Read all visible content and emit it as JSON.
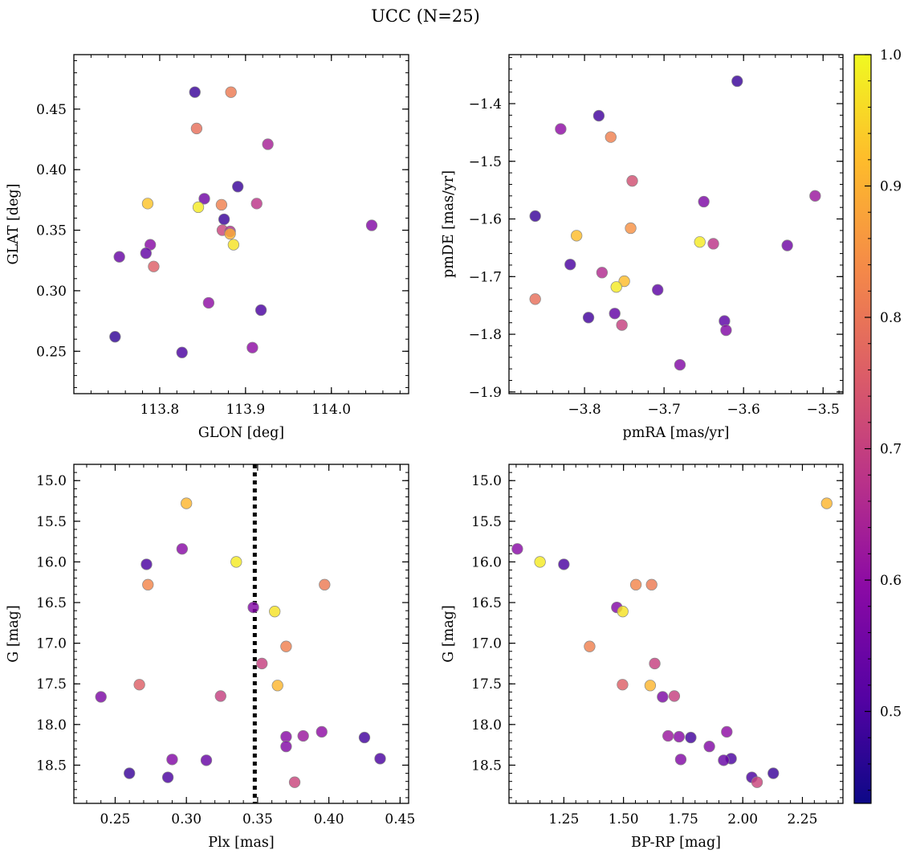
{
  "chart_data": {
    "suptitle": "UCC (N=25)",
    "type": "scatter",
    "colormap": "plasma",
    "marker_edge_color": "#888888",
    "colorbar": {
      "label": "",
      "range": [
        0.43,
        1.0
      ],
      "ticks": [
        0.5,
        0.6,
        0.7,
        0.8,
        0.9,
        1.0
      ],
      "tick_labels": [
        "0.5",
        "0.6",
        "0.7",
        "0.8",
        "0.9",
        "1.0"
      ]
    },
    "panels": [
      {
        "name": "glon-glat",
        "xlabel": "GLON [deg]",
        "ylabel": "GLAT [deg]",
        "xlim": [
          113.7,
          114.09
        ],
        "ylim": [
          0.215,
          0.495
        ],
        "xticks": [
          113.8,
          113.9,
          114.0
        ],
        "xtick_labels": [
          "113.8",
          "113.9",
          "114.0"
        ],
        "yticks": [
          0.25,
          0.3,
          0.35,
          0.4,
          0.45
        ],
        "ytick_labels": [
          "0.25",
          "0.30",
          "0.35",
          "0.40",
          "0.45"
        ],
        "x_minor": 0.02,
        "y_minor": 0.01,
        "invert_y": false,
        "points": [
          {
            "x": 113.841,
            "y": 0.464,
            "p": 0.48
          },
          {
            "x": 113.883,
            "y": 0.464,
            "p": 0.81
          },
          {
            "x": 113.843,
            "y": 0.434,
            "p": 0.79
          },
          {
            "x": 113.926,
            "y": 0.421,
            "p": 0.64
          },
          {
            "x": 113.891,
            "y": 0.386,
            "p": 0.48
          },
          {
            "x": 113.852,
            "y": 0.376,
            "p": 0.55
          },
          {
            "x": 113.786,
            "y": 0.372,
            "p": 0.93
          },
          {
            "x": 113.872,
            "y": 0.371,
            "p": 0.82
          },
          {
            "x": 113.913,
            "y": 0.372,
            "p": 0.68
          },
          {
            "x": 113.845,
            "y": 0.369,
            "p": 0.98
          },
          {
            "x": 113.875,
            "y": 0.359,
            "p": 0.48
          },
          {
            "x": 114.047,
            "y": 0.354,
            "p": 0.58
          },
          {
            "x": 113.873,
            "y": 0.35,
            "p": 0.71
          },
          {
            "x": 113.882,
            "y": 0.349,
            "p": 0.66
          },
          {
            "x": 113.882,
            "y": 0.347,
            "p": 0.9
          },
          {
            "x": 113.789,
            "y": 0.338,
            "p": 0.59
          },
          {
            "x": 113.886,
            "y": 0.338,
            "p": 0.97
          },
          {
            "x": 113.784,
            "y": 0.331,
            "p": 0.53
          },
          {
            "x": 113.753,
            "y": 0.328,
            "p": 0.54
          },
          {
            "x": 113.793,
            "y": 0.32,
            "p": 0.76
          },
          {
            "x": 113.857,
            "y": 0.29,
            "p": 0.6
          },
          {
            "x": 113.918,
            "y": 0.284,
            "p": 0.5
          },
          {
            "x": 113.748,
            "y": 0.262,
            "p": 0.47
          },
          {
            "x": 113.908,
            "y": 0.253,
            "p": 0.6
          },
          {
            "x": 113.826,
            "y": 0.249,
            "p": 0.5
          }
        ]
      },
      {
        "name": "pmra-pmde",
        "xlabel": "pmRA [mas/yr]",
        "ylabel": "pmDE [mas/yr]",
        "xlim": [
          -3.895,
          -3.475
        ],
        "ylim": [
          -1.903,
          -1.315
        ],
        "xticks": [
          -3.8,
          -3.7,
          -3.6,
          -3.5
        ],
        "xtick_labels": [
          "−3.8",
          "−3.7",
          "−3.6",
          "−3.5"
        ],
        "yticks": [
          -1.9,
          -1.8,
          -1.7,
          -1.6,
          -1.5,
          -1.4
        ],
        "ytick_labels": [
          "−1.9",
          "−1.8",
          "−1.7",
          "−1.6",
          "−1.5",
          "−1.4"
        ],
        "x_minor": 0.02,
        "y_minor": 0.02,
        "invert_y": false,
        "points": [
          {
            "x": -3.608,
            "y": -1.361,
            "p": 0.48
          },
          {
            "x": -3.782,
            "y": -1.421,
            "p": 0.49
          },
          {
            "x": -3.83,
            "y": -1.444,
            "p": 0.6
          },
          {
            "x": -3.767,
            "y": -1.458,
            "p": 0.82
          },
          {
            "x": -3.74,
            "y": -1.534,
            "p": 0.73
          },
          {
            "x": -3.51,
            "y": -1.56,
            "p": 0.62
          },
          {
            "x": -3.65,
            "y": -1.57,
            "p": 0.57
          },
          {
            "x": -3.862,
            "y": -1.595,
            "p": 0.48
          },
          {
            "x": -3.742,
            "y": -1.616,
            "p": 0.85
          },
          {
            "x": -3.81,
            "y": -1.629,
            "p": 0.92
          },
          {
            "x": -3.655,
            "y": -1.64,
            "p": 0.98
          },
          {
            "x": -3.638,
            "y": -1.643,
            "p": 0.68
          },
          {
            "x": -3.545,
            "y": -1.646,
            "p": 0.55
          },
          {
            "x": -3.818,
            "y": -1.679,
            "p": 0.5
          },
          {
            "x": -3.778,
            "y": -1.693,
            "p": 0.66
          },
          {
            "x": -3.75,
            "y": -1.708,
            "p": 0.92
          },
          {
            "x": -3.76,
            "y": -1.718,
            "p": 0.98
          },
          {
            "x": -3.708,
            "y": -1.723,
            "p": 0.52
          },
          {
            "x": -3.862,
            "y": -1.739,
            "p": 0.79
          },
          {
            "x": -3.762,
            "y": -1.764,
            "p": 0.53
          },
          {
            "x": -3.795,
            "y": -1.771,
            "p": 0.49
          },
          {
            "x": -3.624,
            "y": -1.777,
            "p": 0.52
          },
          {
            "x": -3.753,
            "y": -1.784,
            "p": 0.7
          },
          {
            "x": -3.622,
            "y": -1.793,
            "p": 0.58
          },
          {
            "x": -3.68,
            "y": -1.853,
            "p": 0.58
          }
        ]
      },
      {
        "name": "plx-g",
        "xlabel": "Plx [mas]",
        "ylabel": "G [mag]",
        "xlim": [
          0.221,
          0.456
        ],
        "ylim": [
          18.97,
          14.8
        ],
        "xticks": [
          0.25,
          0.3,
          0.35,
          0.4,
          0.45
        ],
        "xtick_labels": [
          "0.25",
          "0.30",
          "0.35",
          "0.40",
          "0.45"
        ],
        "yticks": [
          15.0,
          15.5,
          16.0,
          16.5,
          17.0,
          17.5,
          18.0,
          18.5
        ],
        "ytick_labels": [
          "15.0",
          "15.5",
          "16.0",
          "16.5",
          "17.0",
          "17.5",
          "18.0",
          "18.5"
        ],
        "x_minor": 0.01,
        "y_minor": 0.1,
        "invert_y": true,
        "vline": {
          "x": 0.348,
          "style": "dotted",
          "color": "#000000"
        },
        "points": [
          {
            "x": 0.3,
            "y": 15.28,
            "p": 0.91
          },
          {
            "x": 0.297,
            "y": 15.84,
            "p": 0.59
          },
          {
            "x": 0.335,
            "y": 16.0,
            "p": 0.98
          },
          {
            "x": 0.272,
            "y": 16.03,
            "p": 0.5
          },
          {
            "x": 0.273,
            "y": 16.28,
            "p": 0.83
          },
          {
            "x": 0.397,
            "y": 16.28,
            "p": 0.81
          },
          {
            "x": 0.347,
            "y": 16.56,
            "p": 0.58
          },
          {
            "x": 0.362,
            "y": 16.61,
            "p": 0.97
          },
          {
            "x": 0.37,
            "y": 17.04,
            "p": 0.82
          },
          {
            "x": 0.353,
            "y": 17.25,
            "p": 0.7
          },
          {
            "x": 0.267,
            "y": 17.51,
            "p": 0.76
          },
          {
            "x": 0.364,
            "y": 17.52,
            "p": 0.91
          },
          {
            "x": 0.324,
            "y": 17.65,
            "p": 0.7
          },
          {
            "x": 0.24,
            "y": 17.66,
            "p": 0.57
          },
          {
            "x": 0.395,
            "y": 18.09,
            "p": 0.6
          },
          {
            "x": 0.382,
            "y": 18.14,
            "p": 0.62
          },
          {
            "x": 0.37,
            "y": 18.15,
            "p": 0.59
          },
          {
            "x": 0.425,
            "y": 18.16,
            "p": 0.49
          },
          {
            "x": 0.37,
            "y": 18.27,
            "p": 0.58
          },
          {
            "x": 0.436,
            "y": 18.42,
            "p": 0.5
          },
          {
            "x": 0.29,
            "y": 18.43,
            "p": 0.58
          },
          {
            "x": 0.314,
            "y": 18.44,
            "p": 0.54
          },
          {
            "x": 0.26,
            "y": 18.6,
            "p": 0.48
          },
          {
            "x": 0.287,
            "y": 18.65,
            "p": 0.5
          },
          {
            "x": 0.376,
            "y": 18.71,
            "p": 0.71
          }
        ]
      },
      {
        "name": "bprp-g",
        "xlabel": "BP-RP [mag]",
        "ylabel": "G [mag]",
        "xlim": [
          1.02,
          2.42
        ],
        "ylim": [
          18.97,
          14.8
        ],
        "xticks": [
          1.25,
          1.5,
          1.75,
          2.0,
          2.25
        ],
        "xtick_labels": [
          "1.25",
          "1.50",
          "1.75",
          "2.00",
          "2.25"
        ],
        "yticks": [
          15.0,
          15.5,
          16.0,
          16.5,
          17.0,
          17.5,
          18.0,
          18.5
        ],
        "ytick_labels": [
          "15.0",
          "15.5",
          "16.0",
          "16.5",
          "17.0",
          "17.5",
          "18.0",
          "18.5"
        ],
        "x_minor": 0.05,
        "y_minor": 0.1,
        "invert_y": true,
        "points": [
          {
            "x": 2.352,
            "y": 15.28,
            "p": 0.91
          },
          {
            "x": 1.055,
            "y": 15.84,
            "p": 0.59
          },
          {
            "x": 1.15,
            "y": 16.0,
            "p": 0.98
          },
          {
            "x": 1.25,
            "y": 16.03,
            "p": 0.5
          },
          {
            "x": 1.552,
            "y": 16.28,
            "p": 0.83
          },
          {
            "x": 1.618,
            "y": 16.28,
            "p": 0.81
          },
          {
            "x": 1.472,
            "y": 16.56,
            "p": 0.58
          },
          {
            "x": 1.497,
            "y": 16.61,
            "p": 0.97
          },
          {
            "x": 1.358,
            "y": 17.04,
            "p": 0.82
          },
          {
            "x": 1.631,
            "y": 17.25,
            "p": 0.7
          },
          {
            "x": 1.496,
            "y": 17.51,
            "p": 0.76
          },
          {
            "x": 1.612,
            "y": 17.52,
            "p": 0.91
          },
          {
            "x": 1.713,
            "y": 17.65,
            "p": 0.7
          },
          {
            "x": 1.664,
            "y": 17.66,
            "p": 0.57
          },
          {
            "x": 1.933,
            "y": 18.09,
            "p": 0.6
          },
          {
            "x": 1.687,
            "y": 18.14,
            "p": 0.62
          },
          {
            "x": 1.733,
            "y": 18.15,
            "p": 0.59
          },
          {
            "x": 1.782,
            "y": 18.16,
            "p": 0.49
          },
          {
            "x": 1.86,
            "y": 18.27,
            "p": 0.58
          },
          {
            "x": 1.951,
            "y": 18.42,
            "p": 0.5
          },
          {
            "x": 1.74,
            "y": 18.43,
            "p": 0.58
          },
          {
            "x": 1.92,
            "y": 18.44,
            "p": 0.54
          },
          {
            "x": 2.128,
            "y": 18.6,
            "p": 0.48
          },
          {
            "x": 2.038,
            "y": 18.65,
            "p": 0.5
          },
          {
            "x": 2.06,
            "y": 18.71,
            "p": 0.71
          }
        ]
      }
    ]
  }
}
